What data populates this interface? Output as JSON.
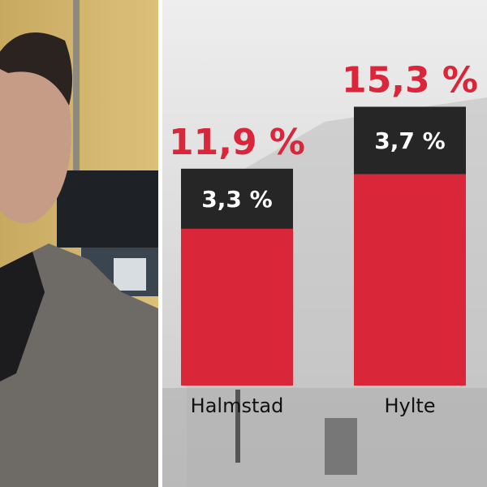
{
  "chart_data": {
    "type": "stacked-bar",
    "categories": [
      "Halmstad",
      "Hylte"
    ],
    "series": [
      {
        "color": "#da2639",
        "values": [
          8.6,
          11.6
        ]
      },
      {
        "color": "#262626",
        "values": [
          3.3,
          3.7
        ],
        "value_labels": [
          "3,3 %",
          "3,7 %"
        ]
      }
    ],
    "totals": [
      11.9,
      15.3
    ],
    "total_labels": [
      "11,9 %",
      "15,3 %"
    ],
    "total_color": "#d9263a",
    "ylim": [
      0,
      20
    ]
  }
}
